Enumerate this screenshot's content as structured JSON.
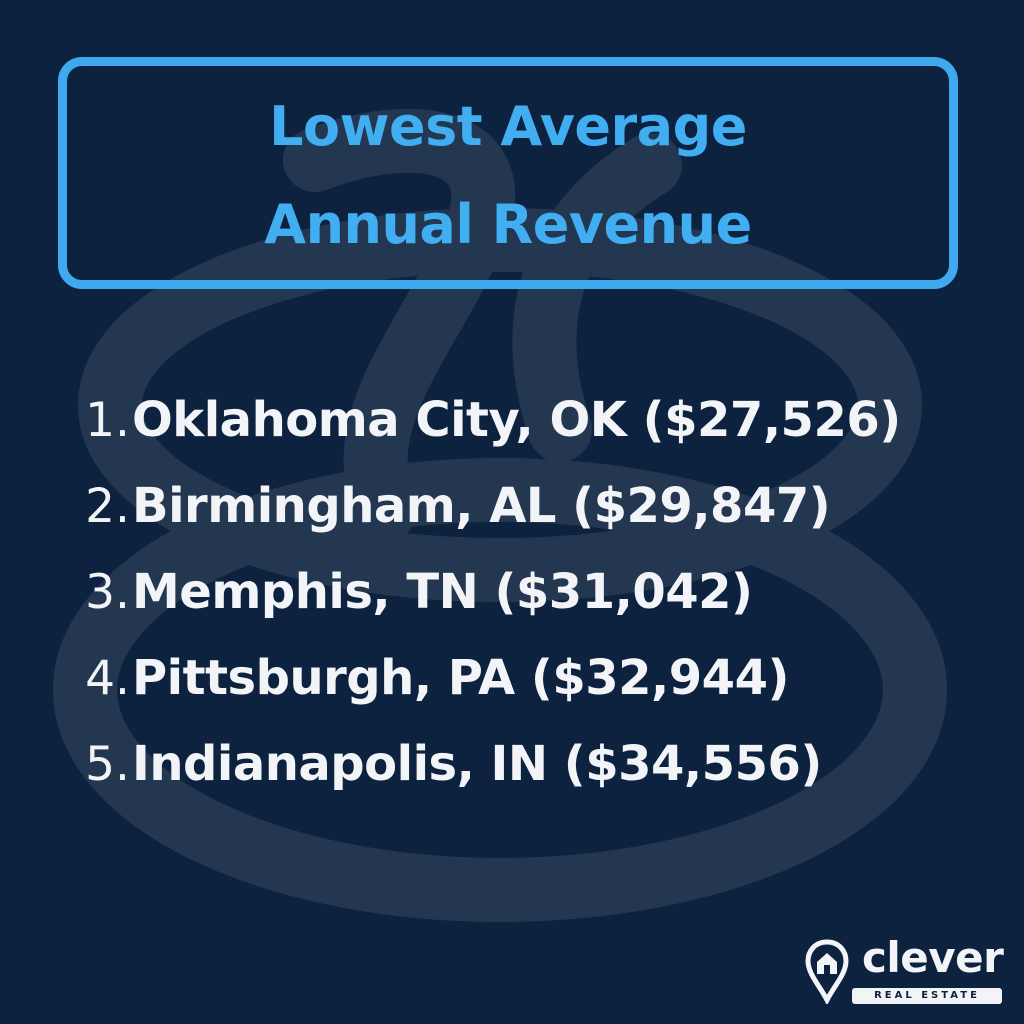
{
  "title": {
    "line1": "Lowest Average",
    "line2": "Annual Revenue"
  },
  "cities": [
    {
      "number": "1.",
      "text": "Oklahoma City, OK ($27,526)"
    },
    {
      "number": "2.",
      "text": "Birmingham, AL ($29,847)"
    },
    {
      "number": "3.",
      "text": "Memphis, TN ($31,042)"
    },
    {
      "number": "4.",
      "text": "Pittsburgh, PA ($32,944)"
    },
    {
      "number": "5.",
      "text": "Indianapolis, IN ($34,556)"
    }
  ],
  "logo": {
    "word": "clever",
    "sub": "REAL ESTATE"
  },
  "colors": {
    "background": "#0d223f",
    "accent": "#3fa9f0",
    "text": "#f2f4f7",
    "watermark": "#233850"
  },
  "icons": {
    "watermark": "clever-swirl-watermark",
    "logo": "location-pin-house-icon"
  }
}
